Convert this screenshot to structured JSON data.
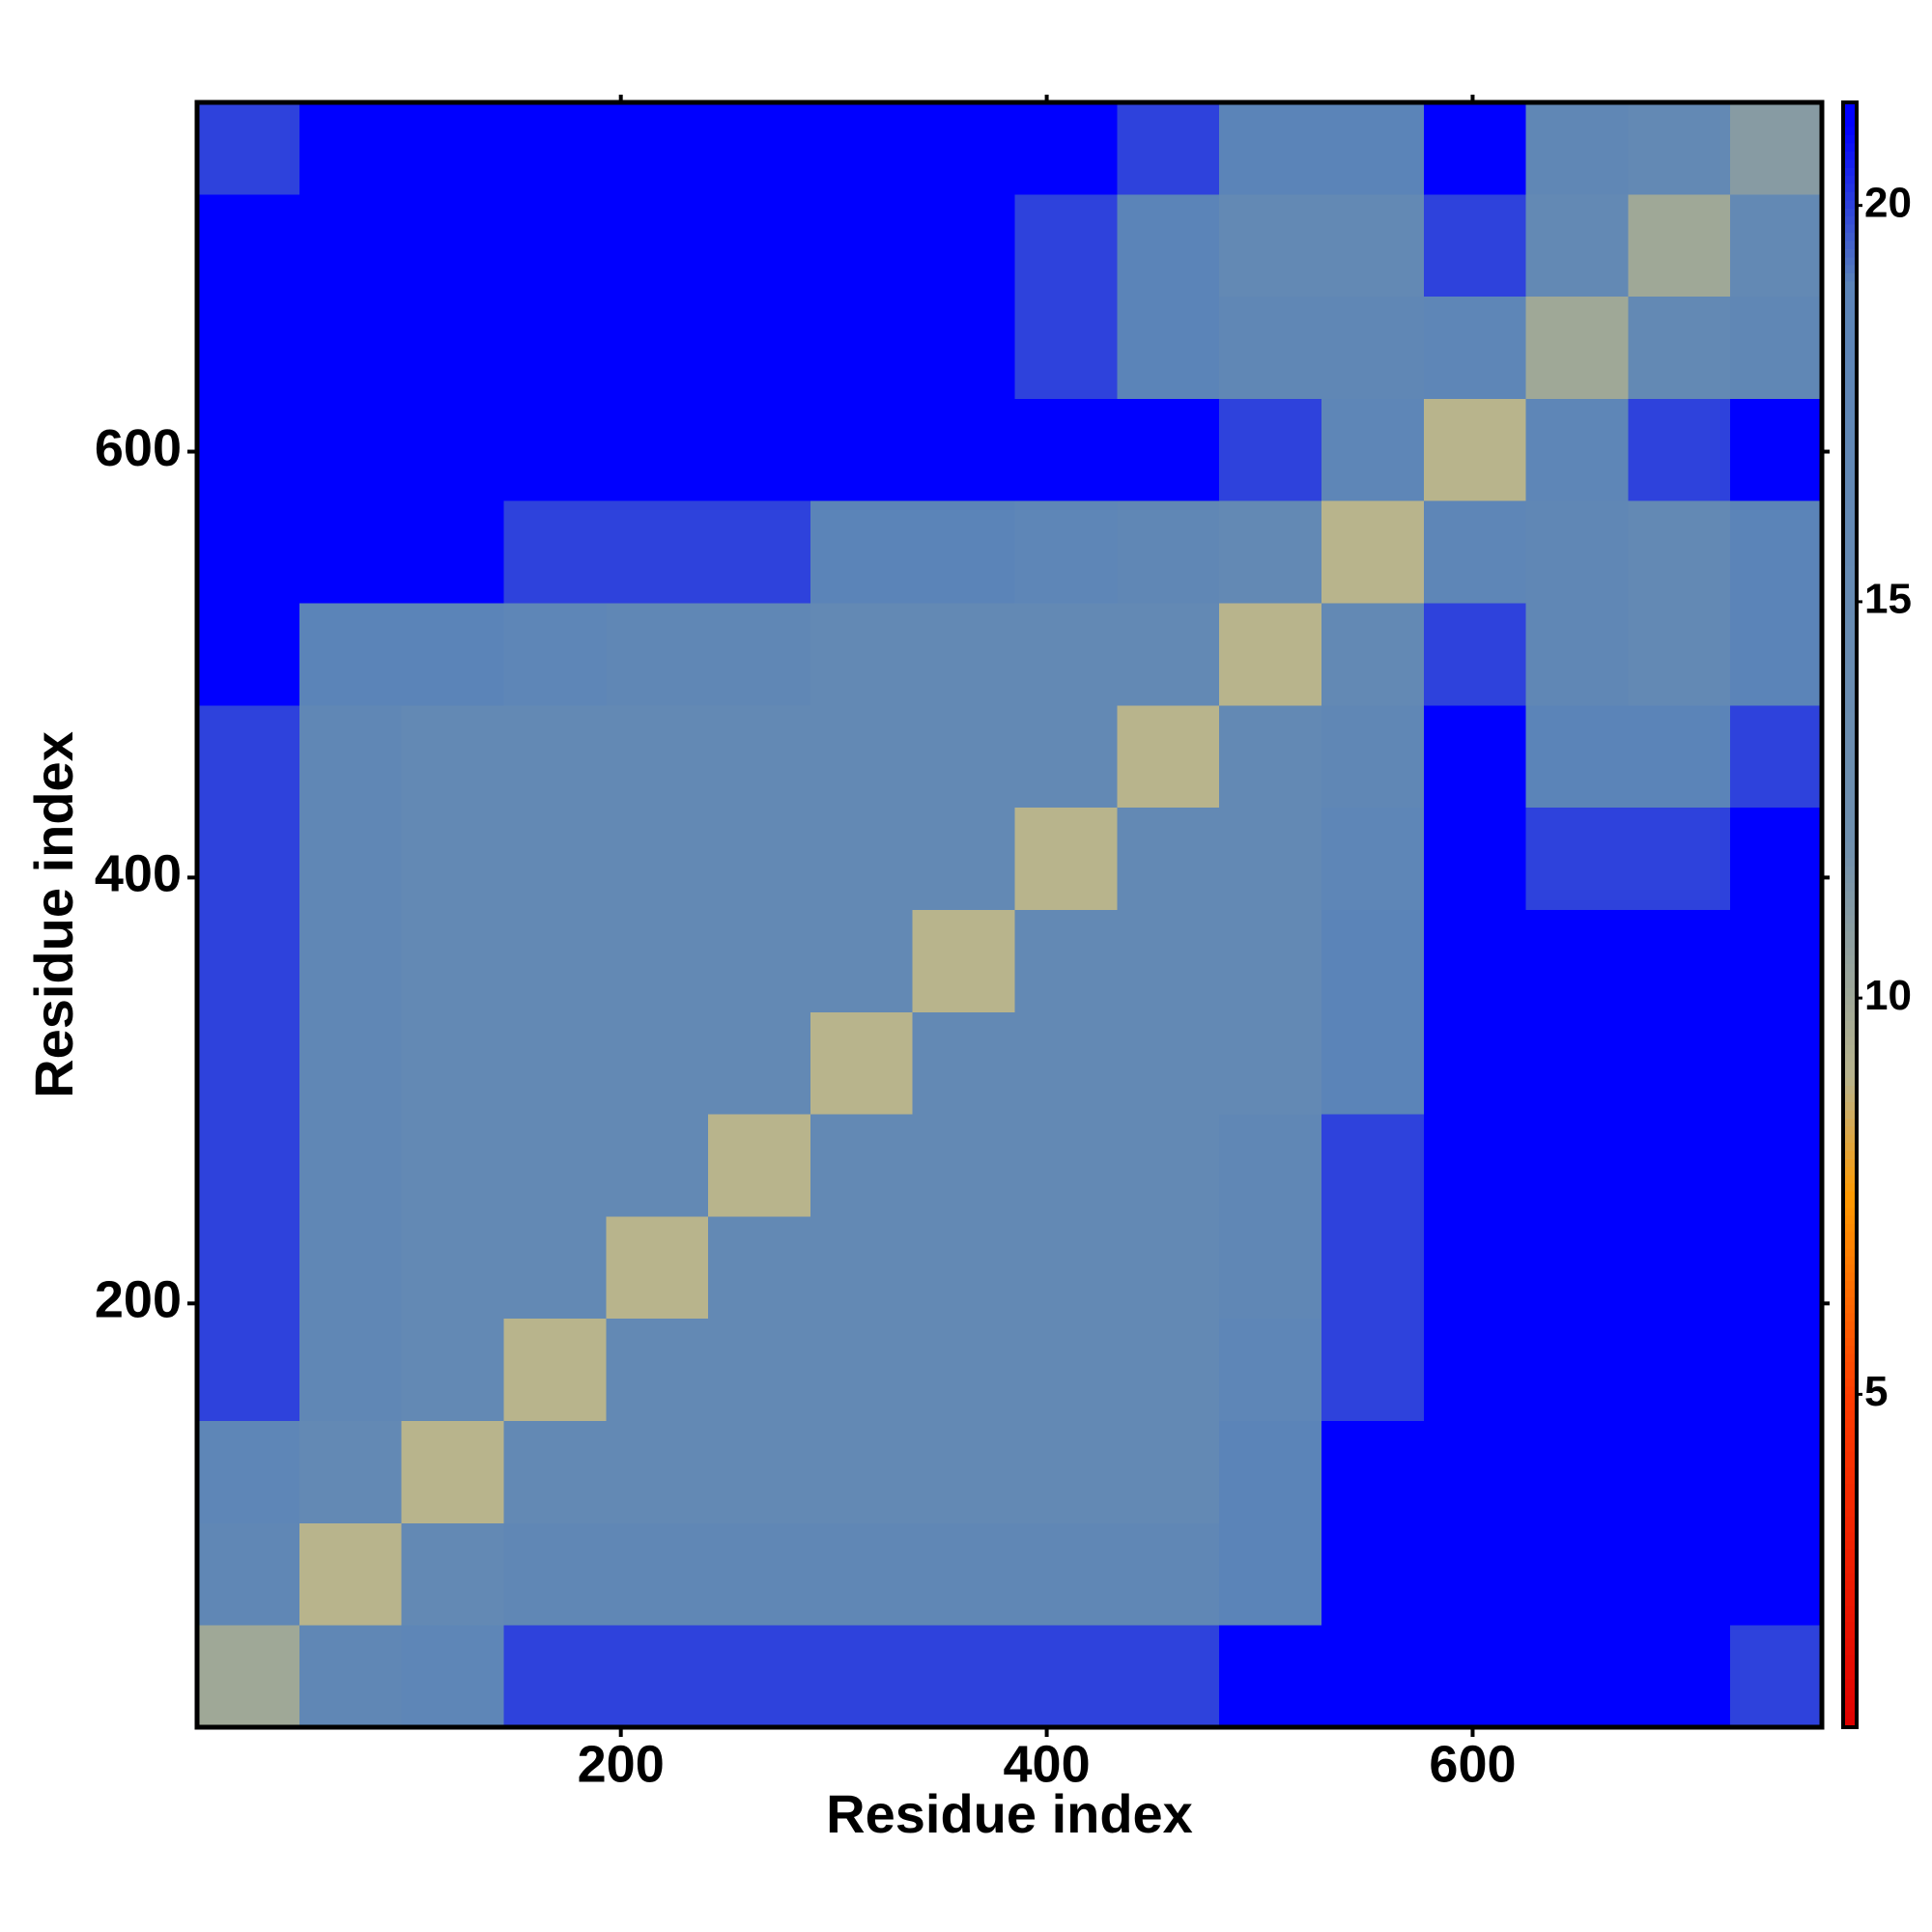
{
  "chart_data": {
    "type": "heatmap",
    "xlabel": "Residue index",
    "ylabel": "Residue index",
    "xbins": [
      1,
      49,
      97,
      145,
      193,
      241,
      289,
      337,
      385,
      433,
      481,
      529,
      577,
      625,
      673,
      721,
      764
    ],
    "ybins": [
      1,
      49,
      97,
      145,
      193,
      241,
      289,
      337,
      385,
      433,
      481,
      529,
      577,
      625,
      673,
      721,
      764
    ],
    "values": [
      [
        10,
        17,
        18,
        20,
        20,
        20,
        20,
        20,
        20,
        20,
        21,
        21,
        21,
        21,
        21,
        20
      ],
      [
        17,
        9,
        16,
        17,
        17,
        17,
        17,
        17,
        17,
        17,
        19,
        21,
        21,
        21,
        21,
        21
      ],
      [
        18,
        16,
        9,
        16,
        16,
        16,
        16,
        16,
        16,
        16,
        19,
        21,
        21,
        21,
        21,
        21
      ],
      [
        20,
        17,
        16,
        9,
        16,
        16,
        16,
        16,
        16,
        16,
        18,
        20,
        21,
        21,
        21,
        21
      ],
      [
        20,
        17,
        16,
        16,
        9,
        16,
        16,
        16,
        16,
        16,
        17,
        20,
        21,
        21,
        21,
        21
      ],
      [
        20,
        17,
        16,
        16,
        16,
        9,
        16,
        16,
        16,
        16,
        17,
        20,
        21,
        21,
        21,
        21
      ],
      [
        20,
        17,
        16,
        16,
        16,
        16,
        9,
        16,
        16,
        16,
        16,
        19,
        21,
        21,
        21,
        21
      ],
      [
        20,
        17,
        16,
        16,
        16,
        16,
        16,
        9,
        16,
        16,
        16,
        19,
        21,
        21,
        21,
        21
      ],
      [
        20,
        17,
        16,
        16,
        16,
        16,
        16,
        16,
        9,
        16,
        16,
        18,
        21,
        20,
        20,
        21
      ],
      [
        20,
        17,
        16,
        16,
        16,
        16,
        16,
        16,
        16,
        9,
        16,
        17,
        21,
        19,
        19,
        20
      ],
      [
        21,
        19,
        19,
        18,
        17,
        17,
        16,
        16,
        16,
        16,
        9,
        16,
        20,
        17,
        16,
        19
      ],
      [
        21,
        21,
        21,
        20,
        20,
        20,
        19,
        19,
        18,
        17,
        16,
        9,
        18,
        17,
        16,
        19
      ],
      [
        21,
        21,
        21,
        21,
        21,
        21,
        21,
        21,
        21,
        21,
        20,
        18,
        9,
        18,
        20,
        21
      ],
      [
        21,
        21,
        21,
        21,
        21,
        21,
        21,
        21,
        20,
        19,
        17,
        17,
        18,
        10,
        16,
        17
      ],
      [
        21,
        21,
        21,
        21,
        21,
        21,
        21,
        21,
        20,
        19,
        16,
        16,
        20,
        16,
        10,
        16
      ],
      [
        20,
        21,
        21,
        21,
        21,
        21,
        21,
        21,
        21,
        20,
        19,
        19,
        21,
        17,
        16,
        11
      ]
    ],
    "xlim": [
      1,
      764
    ],
    "ylim": [
      1,
      764
    ],
    "xticks": [
      200,
      400,
      600
    ],
    "yticks": [
      200,
      400,
      600
    ],
    "clim": [
      0.8,
      21.3
    ],
    "cticks": [
      5,
      10,
      15,
      20
    ],
    "colorscale": [
      [
        0.8,
        "#e00000"
      ],
      [
        5,
        "#ff3c00"
      ],
      [
        7.5,
        "#ff9a00"
      ],
      [
        9,
        "#b8b48c"
      ],
      [
        12,
        "#6e8fae"
      ],
      [
        19,
        "#5b84b8"
      ],
      [
        21,
        "#0000ff"
      ]
    ]
  }
}
